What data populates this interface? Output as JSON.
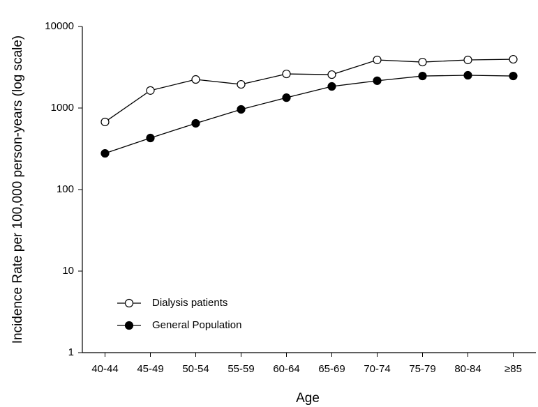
{
  "chart_data": {
    "type": "line",
    "x_label": "Age",
    "y_label": "Incidence Rate per 100,000 person-years (log scale)",
    "categories": [
      "40-44",
      "45-49",
      "50-54",
      "55-59",
      "60-64",
      "65-69",
      "70-74",
      "75-79",
      "80-84",
      "≥85"
    ],
    "series": [
      {
        "name": "Dialysis patients",
        "color": "#ffffff",
        "values": [
          675,
          1640,
          2240,
          1950,
          2620,
          2570,
          3890,
          3660,
          3890,
          3960
        ]
      },
      {
        "name": "General Population",
        "color": "#000000",
        "values": [
          278,
          429,
          649,
          962,
          1340,
          1840,
          2160,
          2470,
          2520,
          2470
        ]
      }
    ],
    "log_scale": true,
    "ylim": [
      1,
      10000
    ],
    "yticks": [
      1,
      10,
      100,
      1000,
      10000
    ],
    "grid": false,
    "legend_position": "lower left"
  }
}
